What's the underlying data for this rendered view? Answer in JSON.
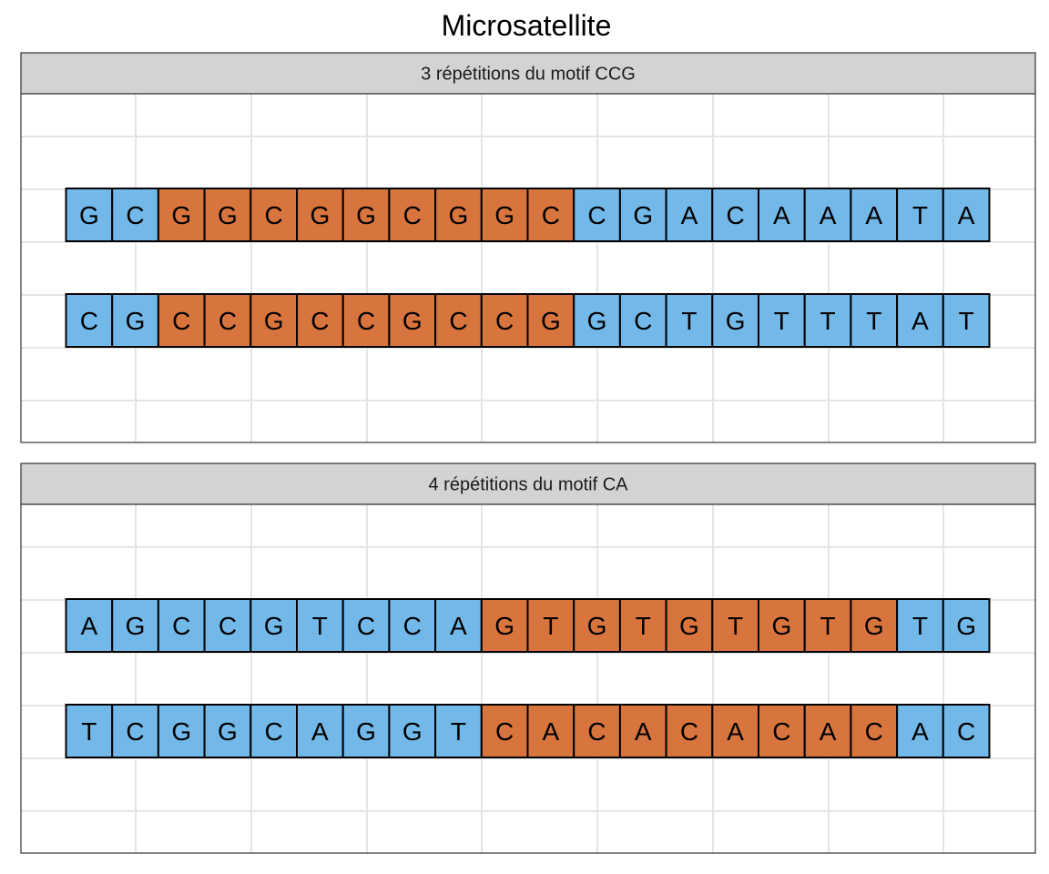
{
  "title": "Microsatellite",
  "colors": {
    "background_base": "#72b8e8",
    "repeat_base": "#d8743e",
    "strip_fill": "#d3d3d3",
    "grid_line": "#e5e5e5",
    "outline": "#000000"
  },
  "panels": [
    {
      "label": "3 répétitions du motif CCG",
      "repeat_range": [
        2,
        10
      ],
      "strands": [
        [
          "G",
          "C",
          "G",
          "G",
          "C",
          "G",
          "G",
          "C",
          "G",
          "G",
          "C",
          "C",
          "G",
          "A",
          "C",
          "A",
          "A",
          "A",
          "T",
          "A"
        ],
        [
          "C",
          "G",
          "C",
          "C",
          "G",
          "C",
          "C",
          "G",
          "C",
          "C",
          "G",
          "G",
          "C",
          "T",
          "G",
          "T",
          "T",
          "T",
          "A",
          "T"
        ]
      ]
    },
    {
      "label": "4 répétitions du motif CA",
      "repeat_range": [
        9,
        17
      ],
      "strands": [
        [
          "A",
          "G",
          "C",
          "C",
          "G",
          "T",
          "C",
          "C",
          "A",
          "G",
          "T",
          "G",
          "T",
          "G",
          "T",
          "G",
          "T",
          "G",
          "T",
          "G"
        ],
        [
          "T",
          "C",
          "G",
          "G",
          "C",
          "A",
          "G",
          "G",
          "T",
          "C",
          "A",
          "C",
          "A",
          "C",
          "A",
          "C",
          "A",
          "C",
          "A",
          "C"
        ]
      ]
    }
  ]
}
